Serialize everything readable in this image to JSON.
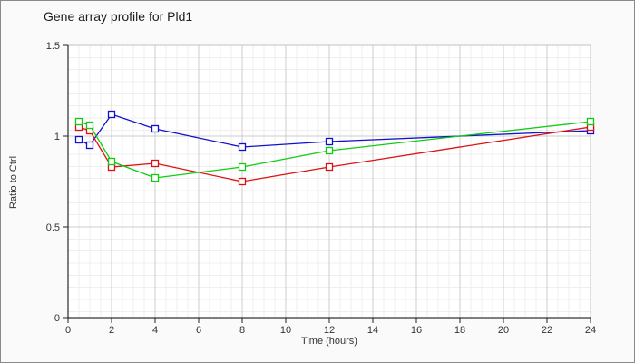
{
  "window": {
    "background_color": "#fafafa",
    "plot_background_color": "#ffffff",
    "border_color": "#8a8a8a",
    "major_grid_color": "#cccccc",
    "minor_grid_color": "#efefef",
    "axis_color": "#000000",
    "tick_label_color": "#333333"
  },
  "chart_data": {
    "type": "line",
    "title": "Gene array profile for Pld1",
    "xlabel": "Time (hours)",
    "ylabel": "Ratio to Ctrl",
    "x": [
      0.5,
      1,
      2,
      4,
      8,
      12,
      24
    ],
    "xlim": [
      0,
      24
    ],
    "ylim": [
      0,
      1.5
    ],
    "xticks": [
      0,
      2,
      4,
      6,
      8,
      10,
      12,
      14,
      16,
      18,
      20,
      22,
      24
    ],
    "xtick_labels": [
      "0",
      "2",
      "4",
      "6",
      "8",
      "10",
      "12",
      "14",
      "16",
      "18",
      "20",
      "22",
      "24"
    ],
    "yticks": [
      0,
      0.5,
      1,
      1.5
    ],
    "ytick_labels": [
      "0",
      "0.5",
      "1",
      "1.5"
    ],
    "grid": "major and minor, on",
    "legend_position": "none",
    "marker": "open-square",
    "series": [
      {
        "name": "series-blue",
        "color": "#1111cc",
        "values": [
          0.98,
          0.95,
          1.12,
          1.04,
          0.94,
          0.97,
          1.03
        ]
      },
      {
        "name": "series-red",
        "color": "#dd1111",
        "values": [
          1.05,
          1.03,
          0.83,
          0.85,
          0.75,
          0.83,
          1.05
        ]
      },
      {
        "name": "series-green",
        "color": "#11cc11",
        "values": [
          1.08,
          1.06,
          0.86,
          0.77,
          0.83,
          0.92,
          1.08
        ]
      }
    ]
  }
}
